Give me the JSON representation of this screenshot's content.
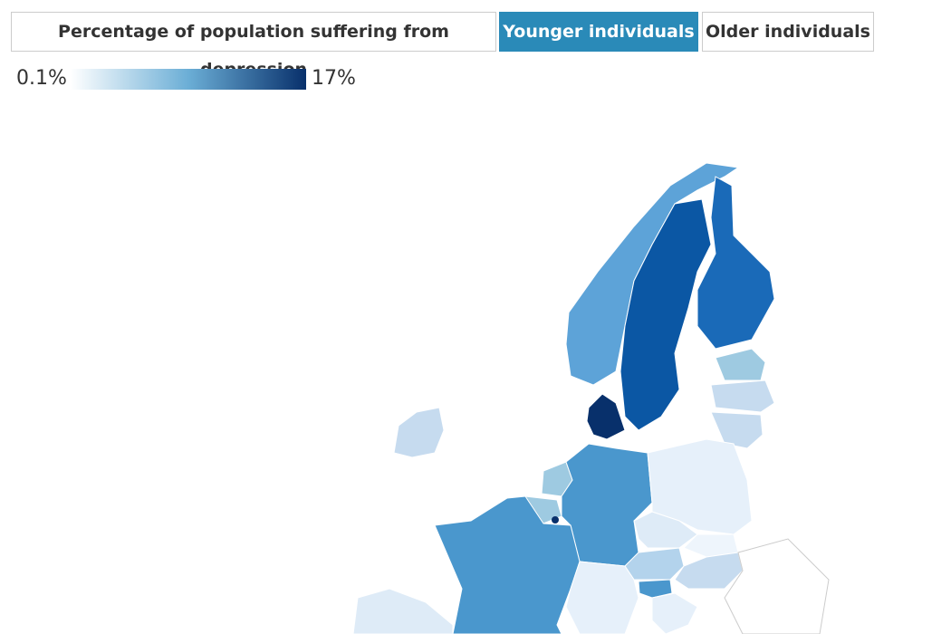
{
  "tabs": [
    "Percentage of population suffering from depression",
    "Younger individuals",
    "Older individuals"
  ],
  "legend": {
    "min": "0.1%",
    "max": "17%"
  }
}
